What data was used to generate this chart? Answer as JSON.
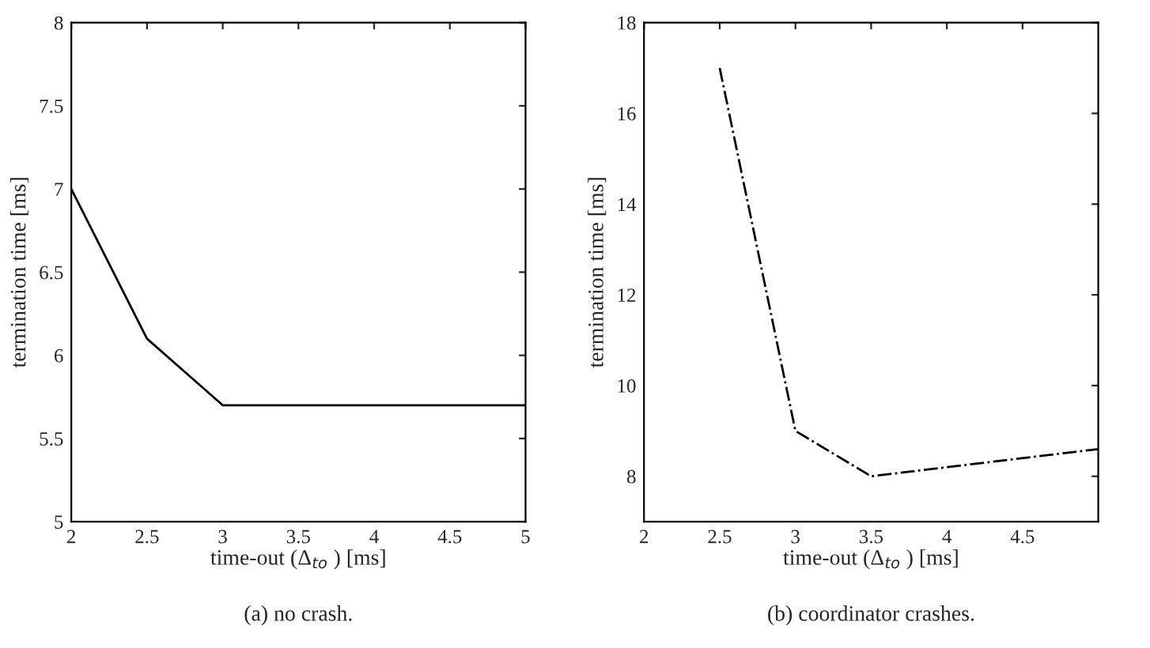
{
  "chart_data": [
    {
      "type": "line",
      "x": [
        2,
        2.5,
        3,
        5
      ],
      "series": [
        {
          "color": "#000000",
          "values": [
            7,
            6.1,
            5.7,
            5.7
          ]
        }
      ],
      "xlim": [
        2,
        5
      ],
      "ylim": [
        5,
        8
      ],
      "xticks": [
        2,
        2.5,
        3,
        3.5,
        4,
        4.5,
        5
      ],
      "yticks": [
        5,
        5.5,
        6,
        6.5,
        7,
        7.5,
        8
      ],
      "xlabel": "time-out (Δ$_{to}$ ) [ms]",
      "ylabel": "termination time [ms]",
      "annotations": [
        "(a) no crash."
      ],
      "line_style": "solid",
      "grid": false,
      "legend": false
    },
    {
      "type": "line",
      "x": [
        2.5,
        3,
        3.5,
        5
      ],
      "series": [
        {
          "color": "#000000",
          "values": [
            17,
            9,
            8,
            8.6
          ]
        }
      ],
      "xlim": [
        2,
        5
      ],
      "ylim": [
        7,
        18
      ],
      "xticks": [
        2,
        2.5,
        3,
        3.5,
        4,
        4.5
      ],
      "yticks": [
        8,
        10,
        12,
        14,
        16,
        18
      ],
      "xlabel": "time-out (Δ$_{to}$ ) [ms]",
      "ylabel": "termination time [ms]",
      "annotations": [
        "(b) coordinator crashes."
      ],
      "line_style": "dashdot",
      "grid": false,
      "legend": false
    }
  ]
}
